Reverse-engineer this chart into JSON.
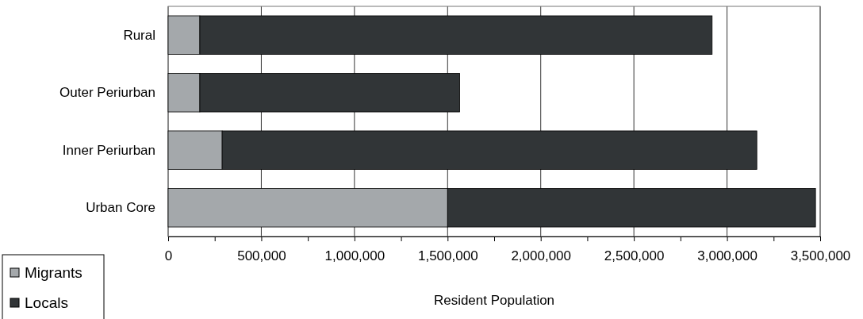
{
  "chart_data": {
    "type": "bar",
    "orientation": "horizontal",
    "stacked": true,
    "xlabel": "Resident Population",
    "categories": [
      "Rural",
      "Outer Periurban",
      "Inner Periurban",
      "Urban Core"
    ],
    "series": [
      {
        "name": "Migrants",
        "color": "#a4a8ab",
        "values": [
          170000,
          170000,
          290000,
          1500000
        ]
      },
      {
        "name": "Locals",
        "color": "#313537",
        "values": [
          2750000,
          1395000,
          2870000,
          1975000
        ]
      }
    ],
    "xlim": [
      0,
      3500000
    ],
    "xticks": [
      0,
      {
        "value": 250000,
        "label": null
      },
      {
        "value": 500000,
        "label": "500,000"
      },
      {
        "value": 750000,
        "label": null
      },
      {
        "value": 1000000,
        "label": "1,000,000"
      },
      {
        "value": 1250000,
        "label": null
      },
      {
        "value": 1500000,
        "label": "1,500,000"
      },
      {
        "value": 1750000,
        "label": null
      },
      {
        "value": 2000000,
        "label": "2,000,000"
      },
      {
        "value": 2250000,
        "label": null
      },
      {
        "value": 2500000,
        "label": "2,500,000"
      },
      {
        "value": 2750000,
        "label": null
      },
      {
        "value": 3000000,
        "label": "3,000,000"
      },
      {
        "value": 3250000,
        "label": null
      },
      {
        "value": 3500000,
        "label": "3,500,000"
      }
    ],
    "grid": "x",
    "legend": "bottom left"
  }
}
